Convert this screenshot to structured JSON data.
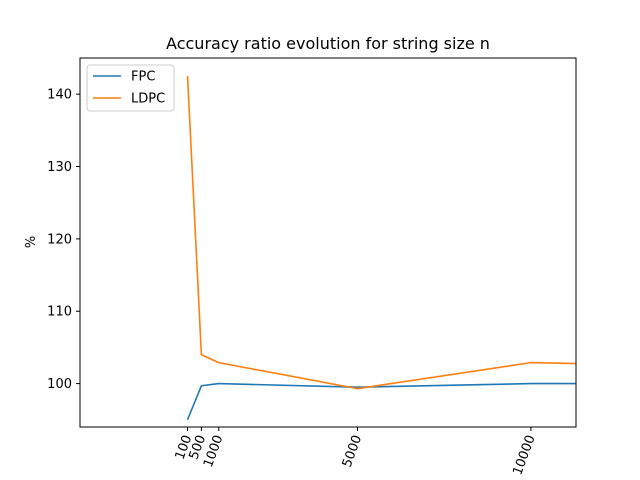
{
  "chart_data": {
    "type": "line",
    "title": "Accuracy ratio evolution for string size n",
    "xlabel": "",
    "ylabel": "%",
    "xlim": [
      -3000,
      11300
    ],
    "ylim": [
      94,
      145
    ],
    "x_ticks": [
      100,
      500,
      1000,
      5000,
      10000
    ],
    "x_tick_labels": [
      "100",
      "500",
      "1000",
      "5000",
      "10000"
    ],
    "y_ticks": [
      100,
      110,
      120,
      130,
      140
    ],
    "y_tick_labels": [
      "100",
      "110",
      "120",
      "130",
      "140"
    ],
    "grid": false,
    "legend_position": "top-left",
    "x": [
      100,
      500,
      1000,
      5000,
      10000,
      12000
    ],
    "series": [
      {
        "name": "FPC",
        "color": "#1f77b4",
        "values": [
          95.0,
          99.7,
          100.0,
          99.5,
          100.0,
          100.0
        ]
      },
      {
        "name": "LDPC",
        "color": "#ff7f0e",
        "values": [
          142.5,
          104.0,
          102.9,
          99.3,
          102.9,
          102.7
        ]
      }
    ]
  }
}
